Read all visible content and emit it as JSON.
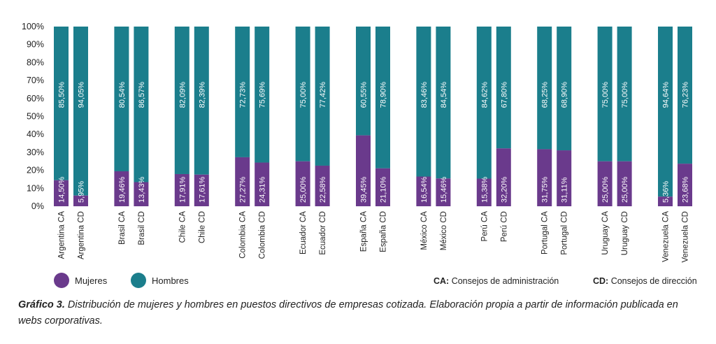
{
  "chart_data": {
    "type": "bar",
    "stacked": true,
    "categories": [
      "Argentina CA",
      "Argentina CD",
      "Brasil CA",
      "Brasil CD",
      "Chile CA",
      "Chile CD",
      "Colombia CA",
      "Colombia CD",
      "Ecuador CA",
      "Ecuador CD",
      "España CA",
      "España CD",
      "México CA",
      "México CD",
      "Perú CA",
      "Perú CD",
      "Portugal CA",
      "Portugal CD",
      "Uruguay CA",
      "Uruguay CD",
      "Venezuela CA",
      "Venezuela CD"
    ],
    "series": [
      {
        "name": "Mujeres",
        "color": "#6a3a8c",
        "values": [
          14.5,
          5.95,
          19.46,
          13.43,
          17.91,
          17.61,
          27.27,
          24.31,
          25.0,
          22.58,
          39.45,
          21.1,
          16.54,
          15.46,
          15.38,
          32.2,
          31.75,
          31.11,
          25.0,
          25.0,
          5.36,
          23.68
        ],
        "labels": [
          "14,50%",
          "5,95%",
          "19,46%",
          "13,43%",
          "17,91%",
          "17,61%",
          "27,27%",
          "24,31%",
          "25,00%",
          "22,58%",
          "39,45%",
          "21,10%",
          "16,54%",
          "15,46%",
          "15,38%",
          "32,20%",
          "31,75%",
          "31,11%",
          "25,00%",
          "25,00%",
          "5,36%",
          "23,68%"
        ]
      },
      {
        "name": "Hombres",
        "color": "#1b7e8c",
        "values": [
          85.5,
          94.05,
          80.54,
          86.57,
          82.09,
          82.39,
          72.73,
          75.69,
          75.0,
          77.42,
          60.55,
          78.9,
          83.46,
          84.54,
          84.62,
          67.8,
          68.25,
          68.9,
          75.0,
          75.0,
          94.64,
          76.23
        ],
        "labels": [
          "85,50%",
          "94,05%",
          "80,54%",
          "86,57%",
          "82,09%",
          "82,39%",
          "72,73%",
          "75,69%",
          "75,00%",
          "77,42%",
          "60,55%",
          "78,90%",
          "83,46%",
          "84,54%",
          "84,62%",
          "67,80%",
          "68,25%",
          "68,90%",
          "75,00%",
          "75,00%",
          "94,64%",
          "76,23%"
        ]
      }
    ],
    "yticks": [
      "0%",
      "10%",
      "20%",
      "30%",
      "40%",
      "50%",
      "60%",
      "70%",
      "80%",
      "90%",
      "100%"
    ],
    "ylim": [
      0,
      100
    ],
    "legend": "bottom-left"
  },
  "legend": {
    "mujeres": "Mujeres",
    "hombres": "Hombres",
    "ca_abbr": "CA:",
    "ca_text": " Consejos de administración",
    "cd_abbr": "CD:",
    "cd_text": " Consejos de dirección"
  },
  "caption": {
    "label": "Gráfico 3.",
    "text": " Distribución de mujeres y hombres en puestos directivos de empresas cotizada. Elaboración propia a partir de información publicada en webs corporativas."
  }
}
